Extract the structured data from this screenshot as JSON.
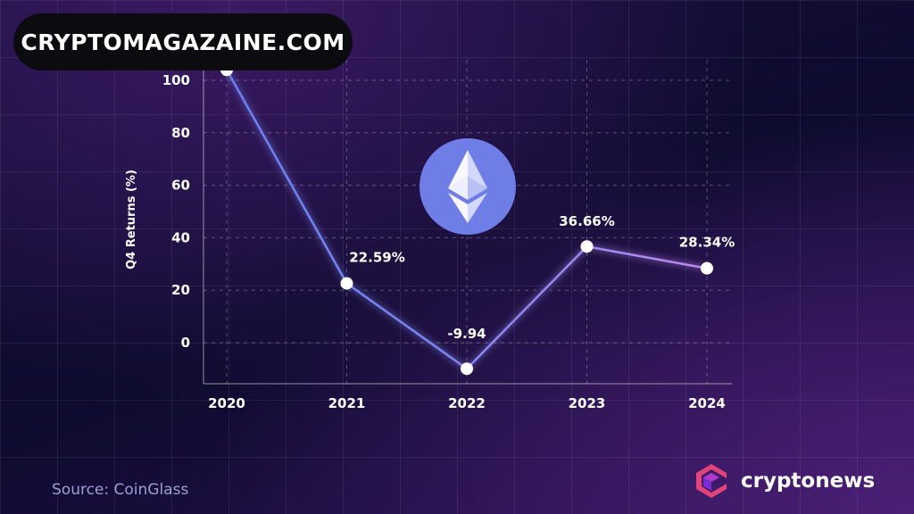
{
  "header": {
    "site_name": "CRYPTOMAGAZAINE.COM"
  },
  "chart_data": {
    "type": "line",
    "x": [
      "2020",
      "2021",
      "2022",
      "2023",
      "2024"
    ],
    "series": [
      {
        "values": [
          104,
          22.59,
          -9.94,
          36.66,
          28.34
        ],
        "data_labels": [
          "",
          "22.59%",
          "-9.94",
          "36.66%",
          "28.34%"
        ]
      }
    ],
    "ylabel": "Q4 Returns (%)",
    "yticks": [
      0,
      20,
      40,
      60,
      80,
      100
    ],
    "ylim": [
      -15,
      108
    ],
    "grid": true,
    "line_colors": [
      "#6d7ff0",
      "#c089f0"
    ],
    "point_color": "#ffffff",
    "icon": "ethereum-logo-icon",
    "icon_color": "#6f7ee6"
  },
  "footer": {
    "source": "Source: CoinGlass",
    "brand": "cryptonews",
    "brand_icon": "cryptonews-logo-icon"
  }
}
